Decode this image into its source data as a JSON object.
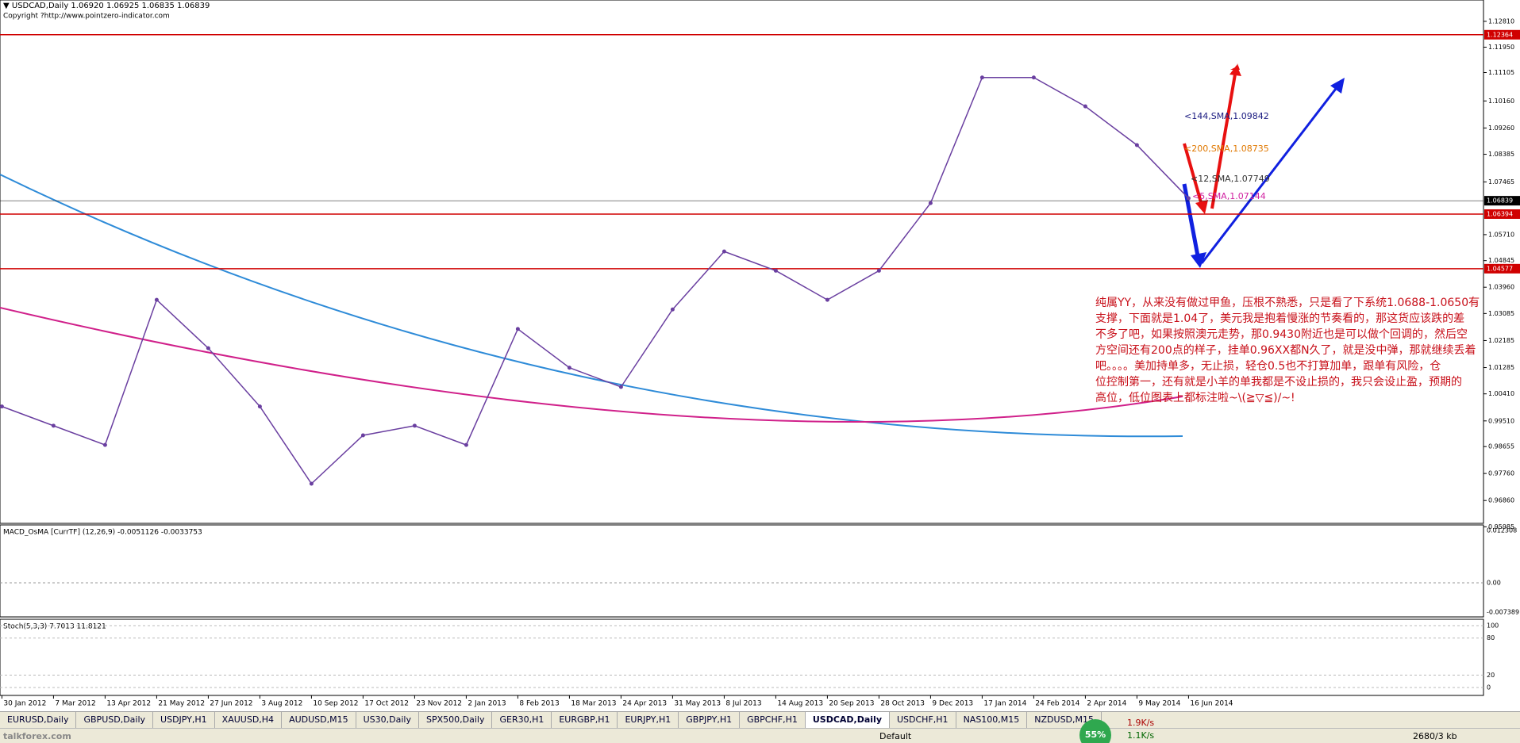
{
  "header": {
    "symbol": "▼ USDCAD,Daily  1.06920 1.06925 1.06835 1.06839",
    "copyright": "Copyright ?http://www.pointzero-indicator.com"
  },
  "main": {
    "ylim": [
      0.961,
      1.1352
    ],
    "yticks": [
      {
        "value": 1.1281,
        "label": "1.12810"
      },
      {
        "value": 1.1195,
        "label": "1.11950"
      },
      {
        "value": 1.11105,
        "label": "1.11105"
      },
      {
        "value": 1.1016,
        "label": "1.10160"
      },
      {
        "value": 1.0926,
        "label": "1.09260"
      },
      {
        "value": 1.08385,
        "label": "1.08385"
      },
      {
        "value": 1.07465,
        "label": "1.07465"
      },
      {
        "value": 1.0571,
        "label": "1.05710"
      },
      {
        "value": 1.04845,
        "label": "1.04845"
      },
      {
        "value": 1.0396,
        "label": "1.03960"
      },
      {
        "value": 1.03085,
        "label": "1.03085"
      },
      {
        "value": 1.02185,
        "label": "1.02185"
      },
      {
        "value": 1.01285,
        "label": "1.01285"
      },
      {
        "value": 1.0041,
        "label": "1.00410"
      },
      {
        "value": 0.9951,
        "label": "0.99510"
      },
      {
        "value": 0.98655,
        "label": "0.98655"
      },
      {
        "value": 0.9776,
        "label": "0.97760"
      },
      {
        "value": 0.9686,
        "label": "0.96860"
      },
      {
        "value": 0.95985,
        "label": "0.95985"
      }
    ],
    "levels": [
      {
        "value": 1.12364,
        "label": "1.12364",
        "color": "#d00000"
      },
      {
        "value": 1.06839,
        "label": "1.06839",
        "color": "#000000"
      },
      {
        "value": 1.06394,
        "label": "1.06394",
        "color": "#d00000"
      },
      {
        "value": 1.04577,
        "label": "1.04577",
        "color": "#d00000"
      }
    ],
    "dates": [
      "30 Jan 2012",
      "7 Mar 2012",
      "13 Apr 2012",
      "21 May 2012",
      "27 Jun 2012",
      "3 Aug 2012",
      "10 Sep 2012",
      "17 Oct 2012",
      "23 Nov 2012",
      "2 Jan 2013",
      "8 Feb 2013",
      "18 Mar 2013",
      "24 Apr 2013",
      "31 May 2013",
      "8 Jul 2013",
      "14 Aug 2013",
      "20 Sep 2013",
      "28 Oct 2013",
      "9 Dec 2013",
      "17 Jan 2014",
      "24 Feb 2014",
      "2 Apr 2014",
      "9 May 2014",
      "16 Jun 2014"
    ],
    "close": {
      "color": "#6a3fa0",
      "values": [
        0.9999,
        0.9935,
        0.9871,
        1.0354,
        1.0193,
        0.9999,
        0.9742,
        0.9903,
        0.9935,
        0.9871,
        1.0257,
        1.0128,
        1.0064,
        1.0322,
        1.0515,
        1.0451,
        1.0354,
        1.0451,
        1.0676,
        1.1094,
        1.1094,
        1.0998,
        1.0869,
        1.0692
      ]
    },
    "ma_labels": [
      {
        "text": "<144,SMA,1.09842",
        "color": "#1a1a80"
      },
      {
        "text": "<200,SMA,1.08735",
        "color": "#e07800"
      },
      {
        "text": "<12,SMA,1.07749",
        "color": "#333333"
      },
      {
        "text": "<5,SMA,1.07144",
        "color": "#d020a0"
      }
    ]
  },
  "macd": {
    "label": "MACD_OsMA [CurrTF] (12,26,9) -0.0051126 -0.0033753",
    "ticks": [
      "0.012308",
      "0.00",
      "-0.007389"
    ]
  },
  "stoch": {
    "label": "Stoch(5,3,3) 7.7013 11.8121",
    "ticks": [
      100,
      80,
      20,
      0
    ]
  },
  "note": [
    "纯属YY，从来没有做过甲鱼，压根不熟悉，只是看了下系统1.0688-1.0650有",
    "支撑，下面就是1.04了，美元我是抱着慢涨的节奏看的，那这货应该跌的差",
    "不多了吧，如果按照澳元走势，那0.9430附近也是可以做个回调的，然后空",
    "方空间还有200点的样子，挂单0.96XX都N久了，就是没中弹，那就继续丢着",
    "吧。。。。美加持单多，无止损，轻仓0.5也不打算加单，跟单有风险，仓",
    "位控制第一，还有就是小羊的单我都是不设止损的，我只会设止盈，预期的",
    "高位，低位图表上都标注啦~\\(≧▽≦)/~!"
  ],
  "tabs": [
    "EURUSD,Daily",
    "GBPUSD,Daily",
    "USDJPY,H1",
    "XAUUSD,H4",
    "AUDUSD,M15",
    "US30,Daily",
    "SPX500,Daily",
    "GER30,H1",
    "EURGBP,H1",
    "EURJPY,H1",
    "GBPJPY,H1",
    "GBPCHF,H1",
    "USDCAD,Daily",
    "USDCHF,H1",
    "NAS100,M15",
    "NZDUSD,M15"
  ],
  "active_tab": 12,
  "status": {
    "watermark": "talkforex.com",
    "cpu": "55%",
    "up": "1.9K/s",
    "down": "1.1K/s",
    "profile": "Default",
    "traffic": "2680/3 kb"
  }
}
